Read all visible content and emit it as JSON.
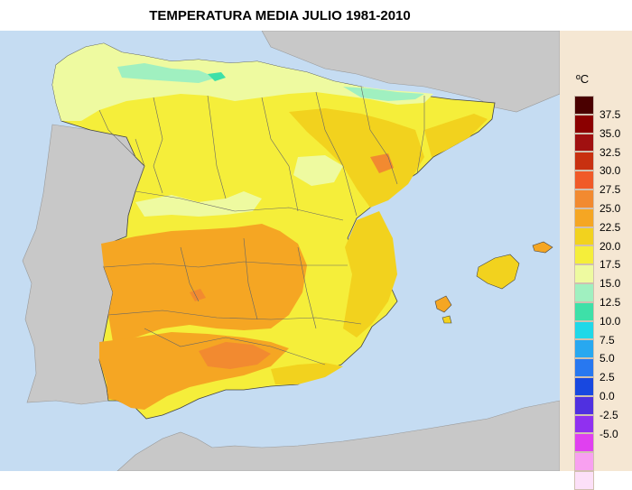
{
  "title": "TEMPERATURA MEDIA JULIO 1981-2010",
  "legend": {
    "unit": "ºC",
    "colors": [
      "#4a0000",
      "#8b0000",
      "#a01010",
      "#c83010",
      "#f05a28",
      "#f28a30",
      "#f5a623",
      "#f2d21e",
      "#f5ee3a",
      "#eefaa0",
      "#a0f0c0",
      "#3ee0a8",
      "#20d8e8",
      "#28a8f0",
      "#2878f0",
      "#1848e0",
      "#5030e0",
      "#9030f0",
      "#e040f0",
      "#f8a0f0",
      "#fce0f8"
    ],
    "ticks": [
      "37.5",
      "35.0",
      "32.5",
      "30.0",
      "27.5",
      "25.0",
      "22.5",
      "20.0",
      "17.5",
      "15.0",
      "12.5",
      "10.0",
      "7.5",
      "5.0",
      "2.5",
      "0.0",
      "-2.5",
      "-5.0"
    ]
  },
  "colors": {
    "sea": "#c5dcf2",
    "other_land": "#c8c8c8",
    "temp_17_5_20": "#eefaa0",
    "temp_20_22_5": "#f5ee3a",
    "temp_22_5_25": "#f2d21e",
    "temp_25_27_5": "#f5a623",
    "temp_27_5_30": "#f28a30",
    "temp_15_17_5": "#a0f0c0",
    "temp_12_5_15": "#3ee0a8",
    "border": "#555555"
  }
}
